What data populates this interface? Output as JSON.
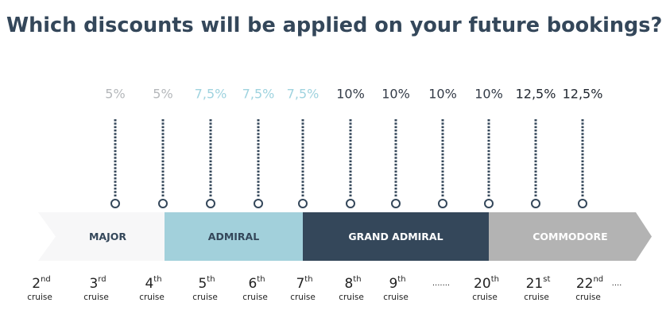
{
  "title": "Which discounts will be applied on your future bookings?",
  "discounts": [
    {
      "text": "5%",
      "color": "#b5b8bb"
    },
    {
      "text": "5%",
      "color": "#b5b8bb"
    },
    {
      "text": "7,5%",
      "color": "#9fd3df"
    },
    {
      "text": "7,5%",
      "color": "#9fd3df"
    },
    {
      "text": "7,5%",
      "color": "#9fd3df"
    },
    {
      "text": "10%",
      "color": "#333b47"
    },
    {
      "text": "10%",
      "color": "#333b47"
    },
    {
      "text": "10%",
      "color": "#333b47"
    },
    {
      "text": "10%",
      "color": "#333b47"
    },
    {
      "text": "12,5%",
      "color": "#222831"
    },
    {
      "text": "12,5%",
      "color": "#222831"
    }
  ],
  "tiers": [
    {
      "label": "MAJOR",
      "color": "#f7f7f8",
      "text_color": "#34475a"
    },
    {
      "label": "ADMIRAL",
      "color": "#a2d0db",
      "text_color": "#34475a"
    },
    {
      "label": "GRAND ADMIRAL",
      "color": "#34475a",
      "text_color": "#ffffff"
    },
    {
      "label": "COMMODORE",
      "color": "#b3b3b3",
      "text_color": "#ffffff"
    }
  ],
  "cruises": [
    {
      "number": "2",
      "suffix": "nd",
      "unit": "cruise"
    },
    {
      "number": "3",
      "suffix": "rd",
      "unit": "cruise"
    },
    {
      "number": "4",
      "suffix": "th",
      "unit": "cruise"
    },
    {
      "number": "5",
      "suffix": "th",
      "unit": "cruise"
    },
    {
      "number": "6",
      "suffix": "th",
      "unit": "cruise"
    },
    {
      "number": "7",
      "suffix": "th",
      "unit": "cruise"
    },
    {
      "number": "8",
      "suffix": "th",
      "unit": "cruise"
    },
    {
      "number": "9",
      "suffix": "th",
      "unit": "cruise"
    },
    {
      "text": "......."
    },
    {
      "number": "20",
      "suffix": "th",
      "unit": "cruise"
    },
    {
      "number": "21",
      "suffix": "st",
      "unit": "cruise"
    },
    {
      "number": "22",
      "suffix": "nd",
      "unit": "cruise"
    },
    {
      "text": "...."
    }
  ]
}
